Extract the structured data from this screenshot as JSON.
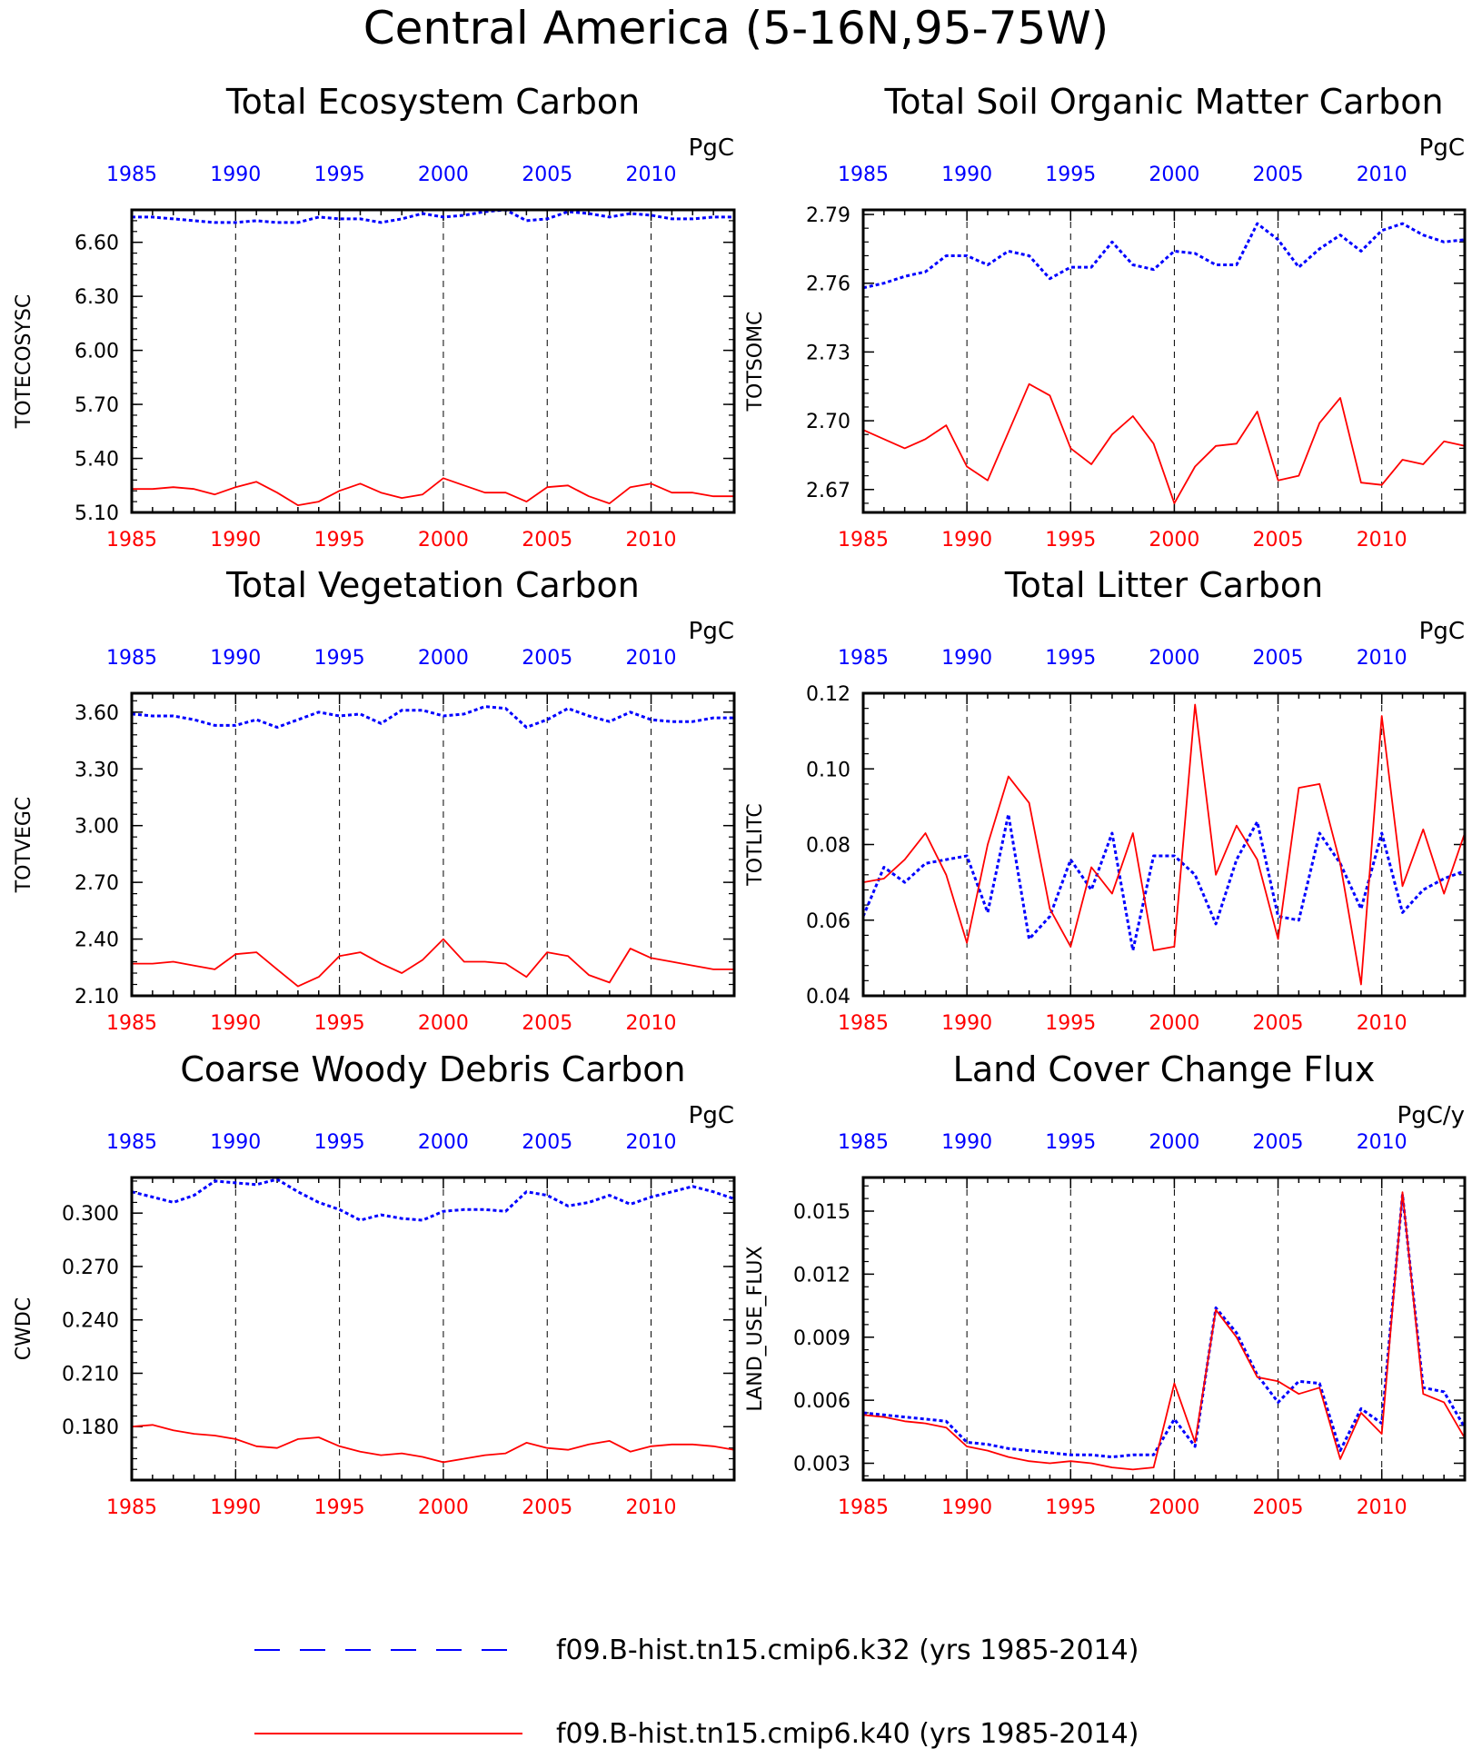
{
  "title": "Central America (5-16N,95-75W)",
  "colors": {
    "series_k32": "#0000ff",
    "series_k40": "#ff0000",
    "axis": "#000000"
  },
  "legend": [
    {
      "style": "dashed",
      "color": "#0000ff",
      "label": "f09.B-hist.tn15.cmip6.k32 (yrs 1985-2014)"
    },
    {
      "style": "solid",
      "color": "#ff0000",
      "label": "f09.B-hist.tn15.cmip6.k40 (yrs 1985-2014)"
    }
  ],
  "chart_data": [
    {
      "type": "line",
      "title": "Total Ecosystem Carbon",
      "ylabel": "TOTECOSYSC",
      "units": "PgC",
      "xlim": [
        1985,
        2014
      ],
      "ylim": [
        5.1,
        6.78
      ],
      "yticks": [
        "5.10",
        "5.40",
        "5.70",
        "6.00",
        "6.30",
        "6.60"
      ],
      "xticks": [
        "1985",
        "1990",
        "1995",
        "2000",
        "2005",
        "2010"
      ],
      "grid_x": [
        1990,
        1995,
        2000,
        2005,
        2010
      ],
      "x": [
        1985,
        1986,
        1987,
        1988,
        1989,
        1990,
        1991,
        1992,
        1993,
        1994,
        1995,
        1996,
        1997,
        1998,
        1999,
        2000,
        2001,
        2002,
        2003,
        2004,
        2005,
        2006,
        2007,
        2008,
        2009,
        2010,
        2011,
        2012,
        2013,
        2014
      ],
      "series": [
        {
          "name": "f09.B-hist.tn15.cmip6.k32",
          "style": "dashed",
          "color": "#0000ff",
          "values": [
            6.74,
            6.74,
            6.73,
            6.72,
            6.71,
            6.71,
            6.72,
            6.71,
            6.71,
            6.74,
            6.73,
            6.73,
            6.71,
            6.73,
            6.76,
            6.74,
            6.75,
            6.77,
            6.78,
            6.72,
            6.73,
            6.77,
            6.76,
            6.74,
            6.76,
            6.75,
            6.73,
            6.73,
            6.74,
            6.74
          ]
        },
        {
          "name": "f09.B-hist.tn15.cmip6.k40",
          "style": "solid",
          "color": "#ff0000",
          "values": [
            5.23,
            5.23,
            5.24,
            5.23,
            5.2,
            5.24,
            5.27,
            5.21,
            5.14,
            5.16,
            5.22,
            5.26,
            5.21,
            5.18,
            5.2,
            5.29,
            5.25,
            5.21,
            5.21,
            5.16,
            5.24,
            5.25,
            5.19,
            5.15,
            5.24,
            5.26,
            5.21,
            5.21,
            5.19,
            5.19
          ]
        }
      ]
    },
    {
      "type": "line",
      "title": "Total Soil Organic Matter Carbon",
      "ylabel": "TOTSOMC",
      "units": "PgC",
      "xlim": [
        1985,
        2014
      ],
      "ylim": [
        2.66,
        2.792
      ],
      "yticks": [
        "2.67",
        "2.70",
        "2.73",
        "2.76",
        "2.79"
      ],
      "xticks": [
        "1985",
        "1990",
        "1995",
        "2000",
        "2005",
        "2010"
      ],
      "grid_x": [
        1990,
        1995,
        2000,
        2005,
        2010
      ],
      "x": [
        1985,
        1986,
        1987,
        1988,
        1989,
        1990,
        1991,
        1992,
        1993,
        1994,
        1995,
        1996,
        1997,
        1998,
        1999,
        2000,
        2001,
        2002,
        2003,
        2004,
        2005,
        2006,
        2007,
        2008,
        2009,
        2010,
        2011,
        2012,
        2013,
        2014
      ],
      "series": [
        {
          "name": "f09.B-hist.tn15.cmip6.k32",
          "style": "dashed",
          "color": "#0000ff",
          "values": [
            2.758,
            2.76,
            2.763,
            2.765,
            2.772,
            2.772,
            2.768,
            2.774,
            2.772,
            2.762,
            2.767,
            2.767,
            2.778,
            2.768,
            2.766,
            2.774,
            2.773,
            2.768,
            2.768,
            2.786,
            2.779,
            2.767,
            2.775,
            2.781,
            2.774,
            2.783,
            2.786,
            2.781,
            2.778,
            2.779
          ]
        },
        {
          "name": "f09.B-hist.tn15.cmip6.k40",
          "style": "solid",
          "color": "#ff0000",
          "values": [
            2.696,
            2.692,
            2.688,
            2.692,
            2.698,
            2.68,
            2.674,
            2.695,
            2.716,
            2.711,
            2.688,
            2.681,
            2.694,
            2.702,
            2.69,
            2.664,
            2.68,
            2.689,
            2.69,
            2.704,
            2.674,
            2.676,
            2.699,
            2.71,
            2.673,
            2.672,
            2.683,
            2.681,
            2.691,
            2.689
          ]
        }
      ]
    },
    {
      "type": "line",
      "title": "Total Vegetation Carbon",
      "ylabel": "TOTVEGC",
      "units": "PgC",
      "xlim": [
        1985,
        2014
      ],
      "ylim": [
        2.1,
        3.7
      ],
      "yticks": [
        "2.10",
        "2.40",
        "2.70",
        "3.00",
        "3.30",
        "3.60"
      ],
      "xticks": [
        "1985",
        "1990",
        "1995",
        "2000",
        "2005",
        "2010"
      ],
      "grid_x": [
        1990,
        1995,
        2000,
        2005,
        2010
      ],
      "x": [
        1985,
        1986,
        1987,
        1988,
        1989,
        1990,
        1991,
        1992,
        1993,
        1994,
        1995,
        1996,
        1997,
        1998,
        1999,
        2000,
        2001,
        2002,
        2003,
        2004,
        2005,
        2006,
        2007,
        2008,
        2009,
        2010,
        2011,
        2012,
        2013,
        2014
      ],
      "series": [
        {
          "name": "f09.B-hist.tn15.cmip6.k32",
          "style": "dashed",
          "color": "#0000ff",
          "values": [
            3.59,
            3.58,
            3.58,
            3.56,
            3.53,
            3.53,
            3.56,
            3.52,
            3.56,
            3.6,
            3.58,
            3.59,
            3.54,
            3.61,
            3.61,
            3.58,
            3.59,
            3.63,
            3.62,
            3.52,
            3.56,
            3.62,
            3.58,
            3.55,
            3.6,
            3.56,
            3.55,
            3.55,
            3.57,
            3.57
          ]
        },
        {
          "name": "f09.B-hist.tn15.cmip6.k40",
          "style": "solid",
          "color": "#ff0000",
          "values": [
            2.27,
            2.27,
            2.28,
            2.26,
            2.24,
            2.32,
            2.33,
            2.24,
            2.15,
            2.2,
            2.31,
            2.33,
            2.27,
            2.22,
            2.29,
            2.4,
            2.28,
            2.28,
            2.27,
            2.2,
            2.33,
            2.31,
            2.21,
            2.17,
            2.35,
            2.3,
            2.28,
            2.26,
            2.24,
            2.24
          ]
        }
      ]
    },
    {
      "type": "line",
      "title": "Total Litter Carbon",
      "ylabel": "TOTLITC",
      "units": "PgC",
      "xlim": [
        1985,
        2014
      ],
      "ylim": [
        0.04,
        0.12
      ],
      "yticks": [
        "0.04",
        "0.06",
        "0.08",
        "0.10",
        "0.12"
      ],
      "xticks": [
        "1985",
        "1990",
        "1995",
        "2000",
        "2005",
        "2010"
      ],
      "grid_x": [
        1990,
        1995,
        2000,
        2005,
        2010
      ],
      "x": [
        1985,
        1986,
        1987,
        1988,
        1989,
        1990,
        1991,
        1992,
        1993,
        1994,
        1995,
        1996,
        1997,
        1998,
        1999,
        2000,
        2001,
        2002,
        2003,
        2004,
        2005,
        2006,
        2007,
        2008,
        2009,
        2010,
        2011,
        2012,
        2013,
        2014
      ],
      "series": [
        {
          "name": "f09.B-hist.tn15.cmip6.k32",
          "style": "dashed",
          "color": "#0000ff",
          "values": [
            0.061,
            0.074,
            0.07,
            0.075,
            0.076,
            0.077,
            0.062,
            0.088,
            0.055,
            0.061,
            0.076,
            0.068,
            0.083,
            0.052,
            0.077,
            0.077,
            0.072,
            0.059,
            0.076,
            0.086,
            0.061,
            0.06,
            0.083,
            0.075,
            0.063,
            0.083,
            0.062,
            0.068,
            0.071,
            0.073
          ]
        },
        {
          "name": "f09.B-hist.tn15.cmip6.k40",
          "style": "solid",
          "color": "#ff0000",
          "values": [
            0.07,
            0.071,
            0.076,
            0.083,
            0.072,
            0.054,
            0.08,
            0.098,
            0.091,
            0.063,
            0.053,
            0.074,
            0.067,
            0.083,
            0.052,
            0.053,
            0.117,
            0.072,
            0.085,
            0.076,
            0.055,
            0.095,
            0.096,
            0.075,
            0.043,
            0.114,
            0.069,
            0.084,
            0.067,
            0.083
          ]
        }
      ]
    },
    {
      "type": "line",
      "title": "Coarse Woody Debris Carbon",
      "ylabel": "CWDC",
      "units": "PgC",
      "xlim": [
        1985,
        2014
      ],
      "ylim": [
        0.15,
        0.32
      ],
      "yticks": [
        "0.180",
        "0.210",
        "0.240",
        "0.270",
        "0.300"
      ],
      "xticks": [
        "1985",
        "1990",
        "1995",
        "2000",
        "2005",
        "2010"
      ],
      "grid_x": [
        1990,
        1995,
        2000,
        2005,
        2010
      ],
      "x": [
        1985,
        1986,
        1987,
        1988,
        1989,
        1990,
        1991,
        1992,
        1993,
        1994,
        1995,
        1996,
        1997,
        1998,
        1999,
        2000,
        2001,
        2002,
        2003,
        2004,
        2005,
        2006,
        2007,
        2008,
        2009,
        2010,
        2011,
        2012,
        2013,
        2014
      ],
      "series": [
        {
          "name": "f09.B-hist.tn15.cmip6.k32",
          "style": "dashed",
          "color": "#0000ff",
          "values": [
            0.312,
            0.309,
            0.306,
            0.31,
            0.318,
            0.317,
            0.316,
            0.319,
            0.312,
            0.306,
            0.302,
            0.296,
            0.299,
            0.297,
            0.296,
            0.301,
            0.302,
            0.302,
            0.301,
            0.312,
            0.31,
            0.304,
            0.306,
            0.31,
            0.305,
            0.309,
            0.312,
            0.315,
            0.312,
            0.308
          ]
        },
        {
          "name": "f09.B-hist.tn15.cmip6.k40",
          "style": "solid",
          "color": "#ff0000",
          "values": [
            0.18,
            0.181,
            0.178,
            0.176,
            0.175,
            0.173,
            0.169,
            0.168,
            0.173,
            0.174,
            0.169,
            0.166,
            0.164,
            0.165,
            0.163,
            0.16,
            0.162,
            0.164,
            0.165,
            0.171,
            0.168,
            0.167,
            0.17,
            0.172,
            0.166,
            0.169,
            0.17,
            0.17,
            0.169,
            0.167
          ]
        }
      ]
    },
    {
      "type": "line",
      "title": "Land Cover Change Flux",
      "ylabel": "LAND_USE_FLUX",
      "units": "PgC/y",
      "xlim": [
        1985,
        2014
      ],
      "ylim": [
        0.0022,
        0.0166
      ],
      "yticks": [
        "0.003",
        "0.006",
        "0.009",
        "0.012",
        "0.015"
      ],
      "xticks": [
        "1985",
        "1990",
        "1995",
        "2000",
        "2005",
        "2010"
      ],
      "grid_x": [
        1990,
        1995,
        2000,
        2005,
        2010
      ],
      "x": [
        1985,
        1986,
        1987,
        1988,
        1989,
        1990,
        1991,
        1992,
        1993,
        1994,
        1995,
        1996,
        1997,
        1998,
        1999,
        2000,
        2001,
        2002,
        2003,
        2004,
        2005,
        2006,
        2007,
        2008,
        2009,
        2010,
        2011,
        2012,
        2013,
        2014
      ],
      "series": [
        {
          "name": "f09.B-hist.tn15.cmip6.k32",
          "style": "dashed",
          "color": "#0000ff",
          "values": [
            0.0054,
            0.0053,
            0.0052,
            0.0051,
            0.005,
            0.004,
            0.0039,
            0.0037,
            0.0036,
            0.0035,
            0.0034,
            0.0034,
            0.0033,
            0.0034,
            0.0034,
            0.0051,
            0.0038,
            0.0104,
            0.0092,
            0.0072,
            0.0059,
            0.0069,
            0.0068,
            0.0036,
            0.0056,
            0.0049,
            0.0158,
            0.0066,
            0.0064,
            0.0047
          ]
        },
        {
          "name": "f09.B-hist.tn15.cmip6.k40",
          "style": "solid",
          "color": "#ff0000",
          "values": [
            0.0053,
            0.0052,
            0.005,
            0.0049,
            0.0047,
            0.0038,
            0.0036,
            0.0033,
            0.0031,
            0.003,
            0.0031,
            0.003,
            0.0028,
            0.0027,
            0.0028,
            0.0068,
            0.004,
            0.0103,
            0.009,
            0.0071,
            0.0069,
            0.0063,
            0.0066,
            0.0032,
            0.0054,
            0.0044,
            0.0159,
            0.0063,
            0.0059,
            0.0042
          ]
        }
      ]
    }
  ]
}
